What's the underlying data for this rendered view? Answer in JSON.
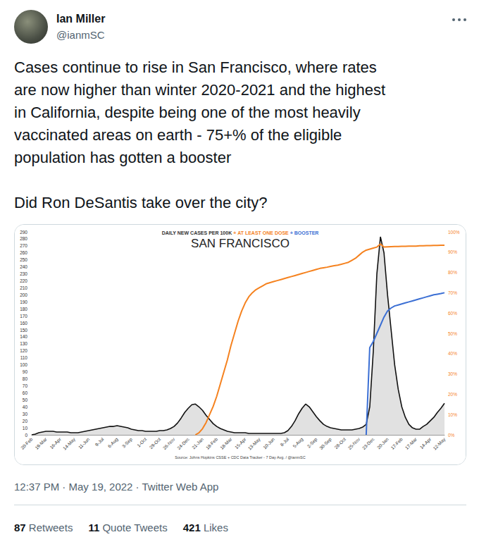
{
  "tweet": {
    "author": {
      "name": "Ian Miller",
      "handle": "@ianmSC"
    },
    "text": [
      [
        "Cases continue to rise in San Francisco, where rates",
        "are now higher than winter 2020-2021 and the highest",
        "in California, despite being one of the most heavily",
        "vaccinated areas on earth - 75+% of the eligible",
        "population has gotten a booster"
      ],
      [
        "Did Ron DeSantis take over the city?"
      ]
    ],
    "timestamp": "12:37 PM · May 19, 2022 · Twitter Web App",
    "stats": [
      {
        "count": 87,
        "label": "Retweets"
      },
      {
        "count": 11,
        "label": "Quote Tweets"
      },
      {
        "count": 421,
        "label": "Likes"
      }
    ]
  },
  "chart_data": {
    "type": "line",
    "title": "SAN FRANCISCO",
    "header": [
      {
        "text": "DAILY NEW CASES PER 100K",
        "color": "#333333"
      },
      {
        "text": "+ AT LEAST ONE DOSE",
        "color": "#f5821f"
      },
      {
        "text": "+ BOOSTER",
        "color": "#3b6fd4"
      }
    ],
    "source": "Source: Johns Hopkins CSSE + CDC Data Tracker - 7 Day Avg. / @ianmSC",
    "grid": false,
    "categories": [
      "20-Feb",
      null,
      null,
      null,
      "19-Mar",
      null,
      null,
      null,
      "16-Apr",
      null,
      null,
      null,
      "14-May",
      null,
      null,
      null,
      "11-Jun",
      null,
      null,
      null,
      "9-Jul",
      null,
      null,
      null,
      "6-Aug",
      null,
      null,
      null,
      "3-Sep",
      null,
      null,
      null,
      "1-Oct",
      null,
      null,
      null,
      "29-Oct",
      null,
      null,
      null,
      "26-Nov",
      null,
      null,
      null,
      "24-Dec",
      null,
      null,
      null,
      "21-Jan",
      null,
      null,
      null,
      "18-Feb",
      null,
      null,
      null,
      "18-Mar",
      null,
      null,
      null,
      "15-Apr",
      null,
      null,
      null,
      "13-May",
      null,
      null,
      null,
      "10-Jun",
      null,
      null,
      null,
      "8-Jul",
      null,
      null,
      null,
      "5-Aug",
      null,
      null,
      null,
      "2-Sep",
      null,
      null,
      null,
      "30-Sep",
      null,
      null,
      null,
      "28-Oct",
      null,
      null,
      null,
      "25-Nov",
      null,
      null,
      null,
      "23-Dec",
      null,
      null,
      null,
      "20-Jan",
      null,
      null,
      null,
      "17-Feb",
      null,
      null,
      null,
      "17-Mar",
      null,
      null,
      null,
      "14-Apr",
      null,
      null,
      null,
      "12-May"
    ],
    "ylim": [
      0,
      290
    ],
    "yticks": [
      0,
      10,
      20,
      30,
      40,
      50,
      60,
      70,
      80,
      90,
      100,
      110,
      120,
      130,
      140,
      150,
      160,
      170,
      180,
      190,
      200,
      210,
      220,
      230,
      240,
      250,
      260,
      270,
      280,
      290
    ],
    "y2lim": [
      0,
      100
    ],
    "y2ticks": [
      {
        "value": 0,
        "label": "0%"
      },
      {
        "value": 10,
        "label": "10%"
      },
      {
        "value": 20,
        "label": "20%"
      },
      {
        "value": 30,
        "label": "30%"
      },
      {
        "value": 40,
        "label": "40%"
      },
      {
        "value": 50,
        "label": "50%"
      },
      {
        "value": 60,
        "label": "60%"
      },
      {
        "value": 70,
        "label": "70%"
      },
      {
        "value": 80,
        "label": "80%"
      },
      {
        "value": 90,
        "label": "90%"
      },
      {
        "value": 100,
        "label": "100%"
      }
    ],
    "series": [
      {
        "name": "DAILY NEW CASES PER 100K",
        "type": "area",
        "color": "#111111",
        "values": [
          0,
          1,
          3,
          4,
          5,
          5,
          5,
          4,
          4,
          4,
          4,
          3,
          3,
          3,
          4,
          5,
          6,
          7,
          8,
          9,
          10,
          11,
          12,
          12,
          13,
          12,
          11,
          10,
          8,
          7,
          6,
          6,
          5,
          5,
          5,
          5,
          6,
          6,
          7,
          9,
          12,
          17,
          24,
          32,
          38,
          43,
          44,
          40,
          35,
          28,
          22,
          16,
          12,
          9,
          7,
          5,
          4,
          3,
          3,
          3,
          3,
          2,
          2,
          2,
          2,
          2,
          2,
          2,
          2,
          2,
          2,
          3,
          6,
          12,
          20,
          30,
          38,
          44,
          40,
          33,
          26,
          20,
          15,
          12,
          10,
          9,
          8,
          7,
          7,
          7,
          7,
          8,
          9,
          11,
          15,
          40,
          120,
          230,
          283,
          260,
          200,
          150,
          100,
          65,
          40,
          25,
          15,
          10,
          8,
          8,
          12,
          15,
          20,
          25,
          32,
          38,
          45
        ]
      },
      {
        "name": "AT LEAST ONE DOSE",
        "type": "line",
        "axis": "y2",
        "color": "#f5821f",
        "values": [
          null,
          null,
          null,
          null,
          null,
          null,
          null,
          null,
          null,
          null,
          null,
          null,
          null,
          null,
          null,
          null,
          null,
          null,
          null,
          null,
          null,
          null,
          null,
          null,
          null,
          null,
          null,
          null,
          null,
          null,
          null,
          null,
          null,
          null,
          null,
          null,
          null,
          null,
          null,
          null,
          null,
          null,
          null,
          null,
          null,
          null,
          0,
          1,
          3,
          6,
          10,
          14,
          19,
          25,
          31,
          37,
          44,
          50,
          56,
          61,
          65,
          68,
          70,
          71.5,
          72.5,
          73.5,
          74.5,
          75,
          75.5,
          76,
          76.5,
          77,
          77.5,
          78,
          78.5,
          79,
          79.5,
          80,
          80.5,
          81,
          81.5,
          82,
          82.3,
          82.6,
          83,
          83.3,
          83.6,
          84,
          84.5,
          85,
          86,
          87,
          88.5,
          90,
          91,
          91.5,
          92,
          92.5,
          94,
          92.5,
          92.6,
          92.7,
          92.8,
          92.8,
          92.9,
          92.9,
          93,
          93,
          93,
          93.1,
          93.1,
          93.2,
          93.2,
          93.3,
          93.3,
          93.4,
          93.4
        ]
      },
      {
        "name": "BOOSTER",
        "type": "line",
        "axis": "y2",
        "color": "#3b6fd4",
        "values": [
          null,
          null,
          null,
          null,
          null,
          null,
          null,
          null,
          null,
          null,
          null,
          null,
          null,
          null,
          null,
          null,
          null,
          null,
          null,
          null,
          null,
          null,
          null,
          null,
          null,
          null,
          null,
          null,
          null,
          null,
          null,
          null,
          null,
          null,
          null,
          null,
          null,
          null,
          null,
          null,
          null,
          null,
          null,
          null,
          null,
          null,
          null,
          null,
          null,
          null,
          null,
          null,
          null,
          null,
          null,
          null,
          null,
          null,
          null,
          null,
          null,
          null,
          null,
          null,
          null,
          null,
          null,
          null,
          null,
          null,
          null,
          null,
          null,
          null,
          null,
          null,
          null,
          null,
          null,
          null,
          null,
          null,
          null,
          null,
          null,
          null,
          null,
          null,
          null,
          null,
          null,
          null,
          null,
          null,
          0,
          43,
          46,
          50,
          54,
          58,
          61,
          62.5,
          63.5,
          64,
          64.5,
          65,
          65.5,
          66,
          66.5,
          67,
          67.5,
          68,
          68.5,
          69,
          69.3,
          69.6,
          70
        ]
      }
    ]
  }
}
